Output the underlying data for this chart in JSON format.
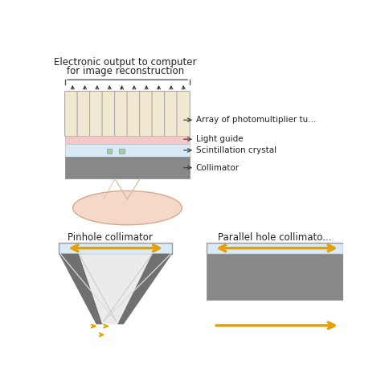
{
  "bg_color": "#ffffff",
  "pmt_color": "#f0e8d0",
  "pmt_border": "#aaaaaa",
  "light_guide_color": "#f2c8c8",
  "crystal_color": "#d8eaf5",
  "source_color": "#f5d8c8",
  "source_border": "#d4a888",
  "gold_color": "#e8a000",
  "dark_gray": "#666666",
  "mid_gray": "#999999",
  "light_path": "#d4b896",
  "arrow_color": "#444444",
  "text_color": "#222222",
  "label_pmt": "Array of photomultiplier tu...",
  "label_lg": "Light guide",
  "label_sc": "Scintillation crystal",
  "label_col": "Collimator",
  "label_pinhole": "Pinhole collimator",
  "label_parallel": "Parallel hole collimato..."
}
